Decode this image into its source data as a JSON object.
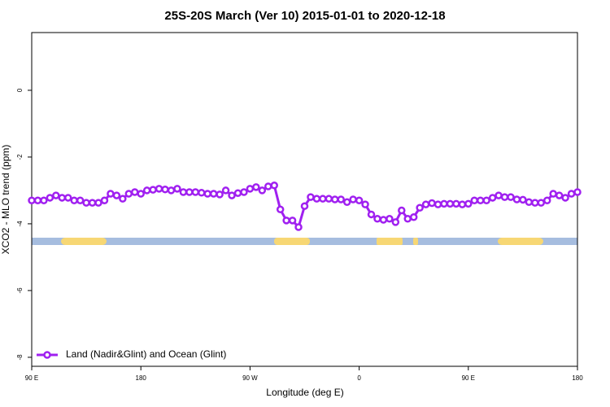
{
  "chart_data": {
    "type": "line",
    "title": "25S-20S March (Ver 10)   2015-01-01 to 2020-12-18",
    "x_label": "Longitude (deg E)",
    "y_label": "XCO2 - MLO trend (ppm)",
    "xlim": [
      90,
      540
    ],
    "xticks": [
      {
        "value": 90,
        "label": "90 E"
      },
      180,
      {
        "value": 270,
        "label": "90 W"
      },
      {
        "value": 360,
        "label": "0"
      },
      {
        "value": 450,
        "label": "90 E"
      },
      {
        "value": 540,
        "label": "180"
      }
    ],
    "ylim": [
      -8.27,
      1.73
    ],
    "yticks": [
      -8,
      -6,
      -4,
      -2,
      0
    ],
    "legend": "bottom-left",
    "x": [
      90,
      95,
      100,
      105,
      110,
      115,
      120,
      125,
      130,
      135,
      140,
      145,
      150,
      155,
      160,
      165,
      170,
      175,
      180,
      185,
      190,
      195,
      200,
      205,
      210,
      215,
      220,
      225,
      230,
      235,
      240,
      245,
      250,
      255,
      260,
      265,
      270,
      275,
      280,
      285,
      290,
      295,
      300,
      305,
      310,
      315,
      320,
      325,
      330,
      335,
      340,
      345,
      350,
      355,
      360,
      365,
      370,
      375,
      380,
      385,
      390,
      395,
      400,
      405,
      410,
      415,
      420,
      425,
      430,
      435,
      440,
      445,
      450,
      455,
      460,
      465,
      470,
      475,
      480,
      485,
      490,
      495,
      500,
      505,
      510,
      515,
      520,
      525,
      530,
      535,
      540
    ],
    "series": [
      {
        "name": "Land (Nadir&Glint) and Ocean (Glint)",
        "color": "#a020f0",
        "values": [
          -3.3,
          -3.3,
          -3.3,
          -3.22,
          -3.15,
          -3.22,
          -3.22,
          -3.3,
          -3.3,
          -3.37,
          -3.37,
          -3.37,
          -3.3,
          -3.1,
          -3.15,
          -3.25,
          -3.1,
          -3.05,
          -3.1,
          -3.0,
          -2.98,
          -2.95,
          -2.97,
          -3.0,
          -2.95,
          -3.05,
          -3.05,
          -3.05,
          -3.07,
          -3.1,
          -3.1,
          -3.12,
          -3.0,
          -3.15,
          -3.08,
          -3.05,
          -2.95,
          -2.9,
          -3.0,
          -2.88,
          -2.85,
          -3.57,
          -3.9,
          -3.9,
          -4.1,
          -3.47,
          -3.2,
          -3.25,
          -3.25,
          -3.25,
          -3.27,
          -3.27,
          -3.35,
          -3.27,
          -3.3,
          -3.42,
          -3.72,
          -3.85,
          -3.88,
          -3.85,
          -3.95,
          -3.6,
          -3.85,
          -3.8,
          -3.52,
          -3.42,
          -3.38,
          -3.42,
          -3.4,
          -3.4,
          -3.4,
          -3.42,
          -3.4,
          -3.3,
          -3.3,
          -3.3,
          -3.22,
          -3.15,
          -3.2,
          -3.2,
          -3.27,
          -3.28,
          -3.35,
          -3.37,
          -3.37,
          -3.3,
          -3.1,
          -3.15,
          -3.22,
          -3.1,
          -3.05
        ]
      }
    ]
  }
}
